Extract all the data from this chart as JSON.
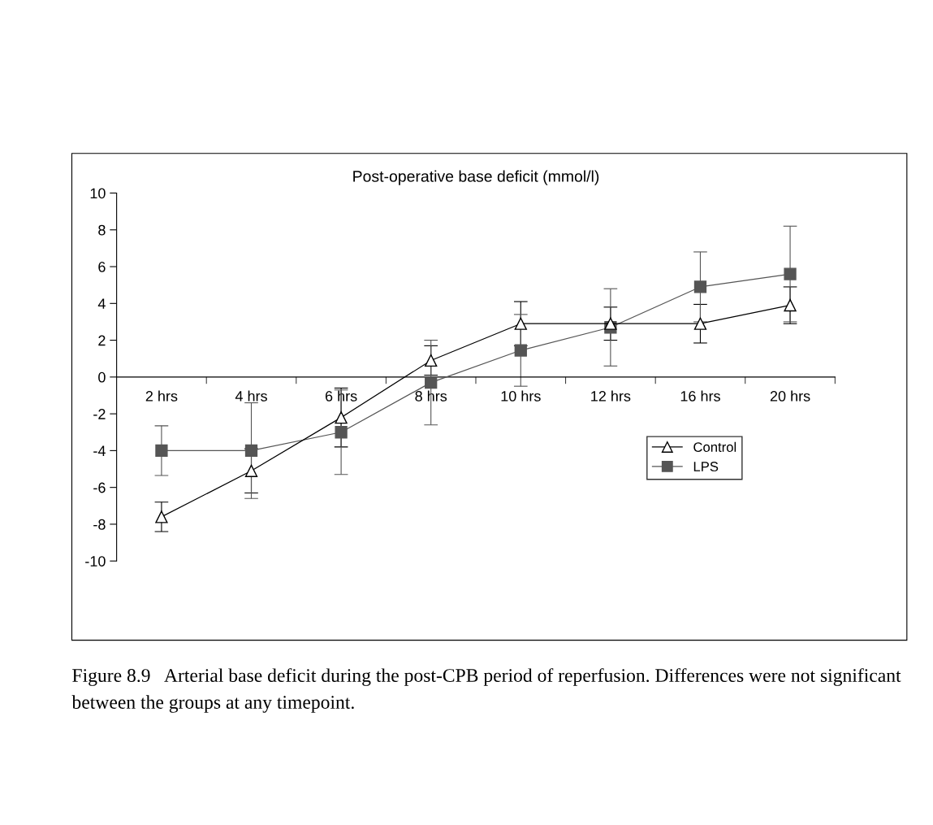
{
  "chart_data": {
    "type": "line",
    "title": "Post-operative base deficit (mmol/l)",
    "categories": [
      "2 hrs",
      "4 hrs",
      "6 hrs",
      "8 hrs",
      "10 hrs",
      "12 hrs",
      "16 hrs",
      "20 hrs"
    ],
    "series": [
      {
        "name": "Control",
        "color": "#000000",
        "marker": "triangle",
        "values": [
          -7.6,
          -5.1,
          -2.2,
          0.9,
          2.9,
          2.9,
          2.9,
          3.9
        ],
        "errors": [
          0.8,
          1.2,
          1.6,
          0.8,
          1.2,
          0.9,
          1.05,
          1.0
        ]
      },
      {
        "name": "LPS",
        "color": "#555555",
        "marker": "square",
        "values": [
          -4.0,
          -4.0,
          -3.0,
          -0.3,
          1.45,
          2.7,
          4.9,
          5.6
        ],
        "errors": [
          1.35,
          2.6,
          2.3,
          2.3,
          1.95,
          2.1,
          1.9,
          2.6
        ]
      }
    ],
    "ylim": [
      -10,
      10
    ],
    "yticks": [
      -10,
      -8,
      -6,
      -4,
      -2,
      0,
      2,
      4,
      6,
      8,
      10
    ],
    "grid": false,
    "legend": "right",
    "line_style": "solid",
    "annotations": [
      "Figure 8.9   Arterial base deficit during the post-CPB period of reperfusion. Differences were not significant between the groups at any timepoint."
    ]
  }
}
